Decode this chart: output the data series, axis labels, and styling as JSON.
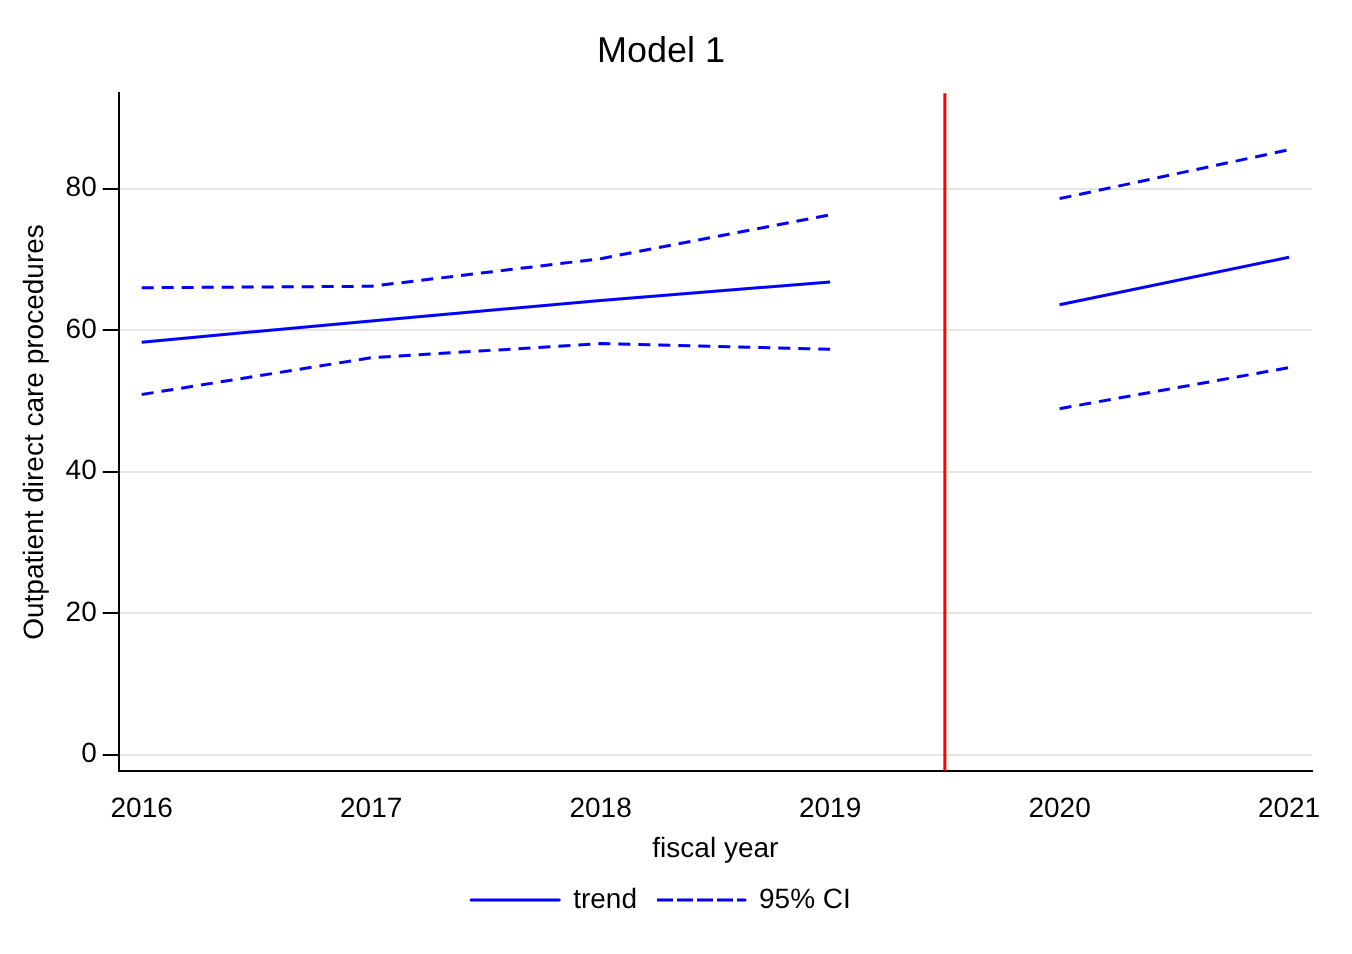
{
  "chart_data": {
    "type": "line",
    "title": "Model 1",
    "xlabel": "fiscal year",
    "ylabel": "Outpatient direct care procedures",
    "x": [
      2016,
      2017,
      2018,
      2019,
      2019.5,
      2020,
      2021
    ],
    "series": [
      {
        "name": "trend",
        "color": "#0000ff",
        "line_style": "solid",
        "values": [
          58.3,
          61.3,
          64.2,
          66.8,
          null,
          63.6,
          70.3
        ]
      },
      {
        "name": "95% CI",
        "color": "#0000ff",
        "line_style": "dashed",
        "values": [
          66,
          66.2,
          70.1,
          76.3,
          null,
          78.6,
          85.5
        ]
      },
      {
        "color": "#0000ff",
        "line_style": "dashed",
        "values": [
          50.9,
          56.1,
          58.1,
          57.3,
          null,
          48.9,
          54.7
        ]
      }
    ],
    "xlim": [
      2015.9,
      2021.1
    ],
    "xticks": [
      2016,
      2017,
      2018,
      2019,
      2020,
      2021
    ],
    "ylim": [
      -2.3,
      93.5
    ],
    "yticks": [
      0,
      20,
      40,
      60,
      80
    ],
    "ref_lines": [
      {
        "axis": "x",
        "value": 2019.5,
        "color": "#ff0000"
      }
    ],
    "grid": "y",
    "legend": "bottom",
    "marker": "none"
  }
}
